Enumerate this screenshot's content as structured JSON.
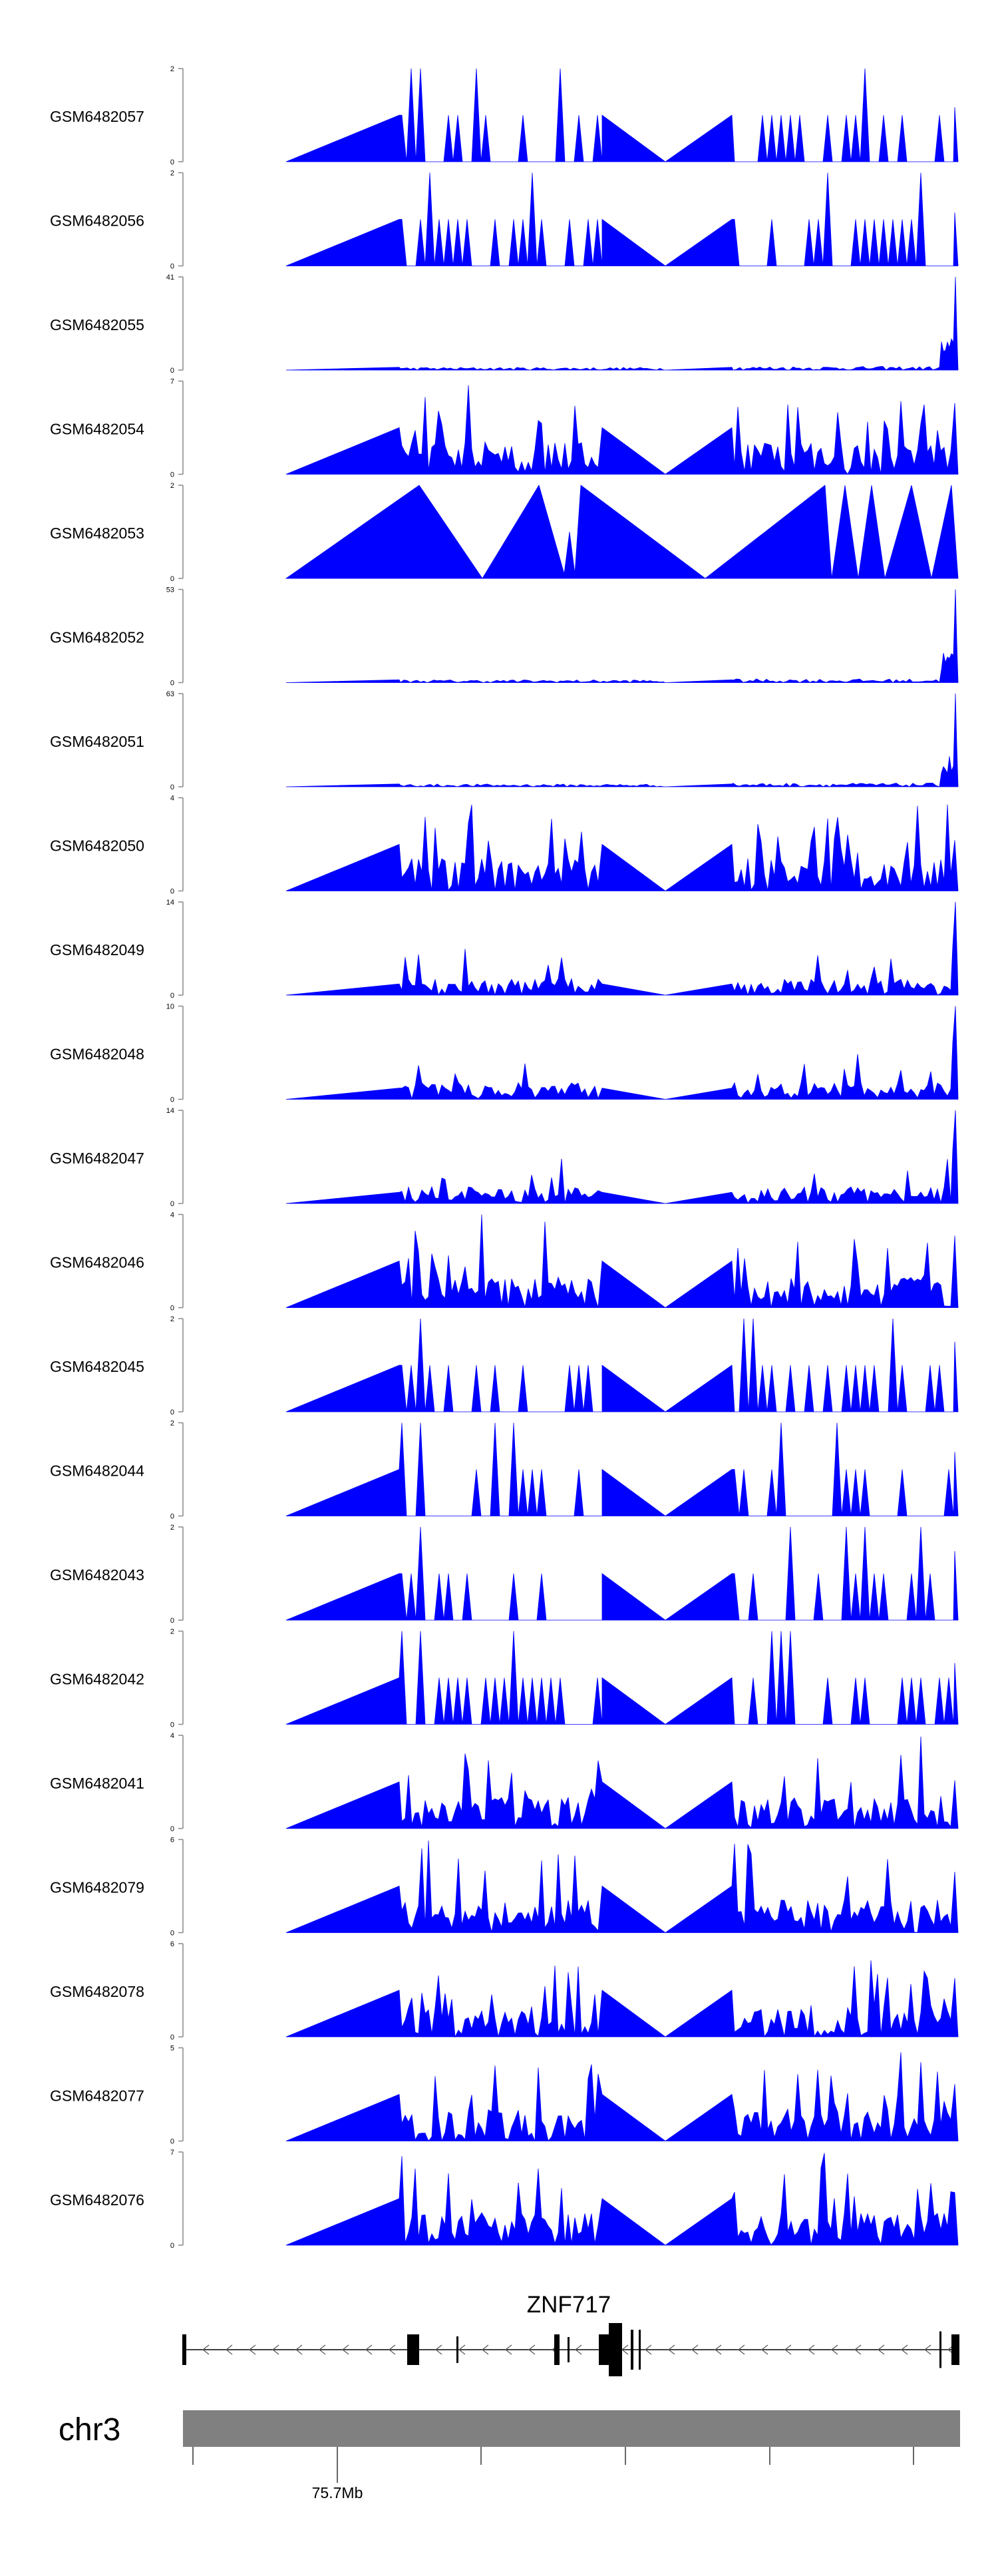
{
  "chart_data": {
    "type": "area",
    "tracks": [
      {
        "name": "GSM6482057",
        "ymax": "2",
        "ymin": "0",
        "max": 2,
        "style": "sparse"
      },
      {
        "name": "GSM6482056",
        "ymax": "2",
        "ymin": "0",
        "max": 2,
        "style": "sparse"
      },
      {
        "name": "GSM6482055",
        "ymax": "41",
        "ymin": "0",
        "max": 41,
        "style": "spike-end"
      },
      {
        "name": "GSM6482054",
        "ymax": "7",
        "ymin": "0",
        "max": 7,
        "style": "dense"
      },
      {
        "name": "GSM6482053",
        "ymax": "2",
        "ymin": "0",
        "max": 2,
        "style": "triangles"
      },
      {
        "name": "GSM6482052",
        "ymax": "53",
        "ymin": "0",
        "max": 53,
        "style": "spike-end"
      },
      {
        "name": "GSM6482051",
        "ymax": "63",
        "ymin": "0",
        "max": 63,
        "style": "spike-end"
      },
      {
        "name": "GSM6482050",
        "ymax": "4",
        "ymin": "0",
        "max": 4,
        "style": "dense"
      },
      {
        "name": "GSM6482049",
        "ymax": "14",
        "ymin": "0",
        "max": 14,
        "style": "low-end"
      },
      {
        "name": "GSM6482048",
        "ymax": "10",
        "ymin": "0",
        "max": 10,
        "style": "low-end"
      },
      {
        "name": "GSM6482047",
        "ymax": "14",
        "ymin": "0",
        "max": 14,
        "style": "low-end"
      },
      {
        "name": "GSM6482046",
        "ymax": "4",
        "ymin": "0",
        "max": 4,
        "style": "dense"
      },
      {
        "name": "GSM6482045",
        "ymax": "2",
        "ymin": "0",
        "max": 2,
        "style": "sparse"
      },
      {
        "name": "GSM6482044",
        "ymax": "2",
        "ymin": "0",
        "max": 2,
        "style": "sparse"
      },
      {
        "name": "GSM6482043",
        "ymax": "2",
        "ymin": "0",
        "max": 2,
        "style": "sparse"
      },
      {
        "name": "GSM6482042",
        "ymax": "2",
        "ymin": "0",
        "max": 2,
        "style": "sparse"
      },
      {
        "name": "GSM6482041",
        "ymax": "4",
        "ymin": "0",
        "max": 4,
        "style": "dense"
      },
      {
        "name": "GSM6482079",
        "ymax": "6",
        "ymin": "0",
        "max": 6,
        "style": "dense"
      },
      {
        "name": "GSM6482078",
        "ymax": "6",
        "ymin": "0",
        "max": 6,
        "style": "dense"
      },
      {
        "name": "GSM6482077",
        "ymax": "5",
        "ymin": "0",
        "max": 5,
        "style": "dense"
      },
      {
        "name": "GSM6482076",
        "ymax": "7",
        "ymin": "0",
        "max": 7,
        "style": "dense"
      }
    ],
    "gene": {
      "name": "ZNF717",
      "strand": "-"
    },
    "chromosome": {
      "name": "chr3",
      "tick_label": "75.7Mb"
    },
    "colors": {
      "signal": "#0000ff",
      "ideogram": "#808080",
      "gene": "#000000"
    }
  }
}
